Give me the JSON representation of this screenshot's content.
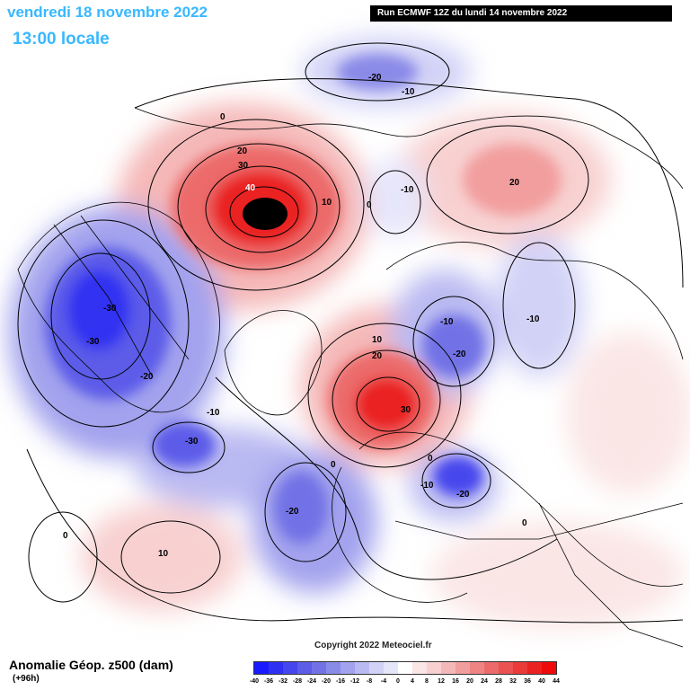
{
  "header": {
    "valid_date": "vendredi 18 novembre 2022",
    "local_time": "13:00 locale",
    "run_info": "Run ECMWF 12Z du lundi 14 novembre 2022"
  },
  "footer": {
    "product": "Anomalie Géop. z500 (dam)",
    "lead_time": "(+96h)",
    "copyright": "Copyright 2022 Meteociel.fr"
  },
  "legend": {
    "colors": [
      "#1a1aff",
      "#3030f2",
      "#4646ee",
      "#5c5ce9",
      "#7272e6",
      "#8a8ae8",
      "#a2a2ee",
      "#babaf2",
      "#d2d2f7",
      "#e6e6fb",
      "#ffffff",
      "#fbe6e6",
      "#f8d0d0",
      "#f5b8b8",
      "#f29e9e",
      "#ef8484",
      "#ec6a6a",
      "#eb5252",
      "#ea3a3a",
      "#ea2222",
      "#ee0a0a"
    ],
    "ticks": [
      "-40",
      "-36",
      "-32",
      "-28",
      "-24",
      "-20",
      "-16",
      "-12",
      "-8",
      "-4",
      "0",
      "4",
      "8",
      "12",
      "16",
      "20",
      "24",
      "28",
      "32",
      "36",
      "40",
      "44"
    ]
  },
  "map_labels": {
    "max_greenland_sea": "40",
    "c20_a": "20",
    "c30_a": "30",
    "c10_a": "10",
    "zero_top": "0",
    "zero_b": "0",
    "low_pacific": "-20",
    "low_pacific_10": "-10",
    "low_bering": "-10",
    "high_siberia": "20",
    "low_canada_a": "-30",
    "low_canada_b": "-30",
    "low_canada_20": "-20",
    "low_hudson": "-10",
    "low_labrador": "-30",
    "low_atlantic": "-20",
    "zero_atl": "0",
    "zero_mid": "0",
    "high_pac_sw": "10",
    "high_scand_10": "10",
    "high_scand_20": "20",
    "high_scand_30": "30",
    "low_siberia_a": "-10",
    "low_siberia_b": "-20",
    "low_siberia_c": "-10",
    "low_europe_a": "-10",
    "low_europe_b": "-20",
    "zero_europe": "0",
    "zero_asia": "0"
  }
}
